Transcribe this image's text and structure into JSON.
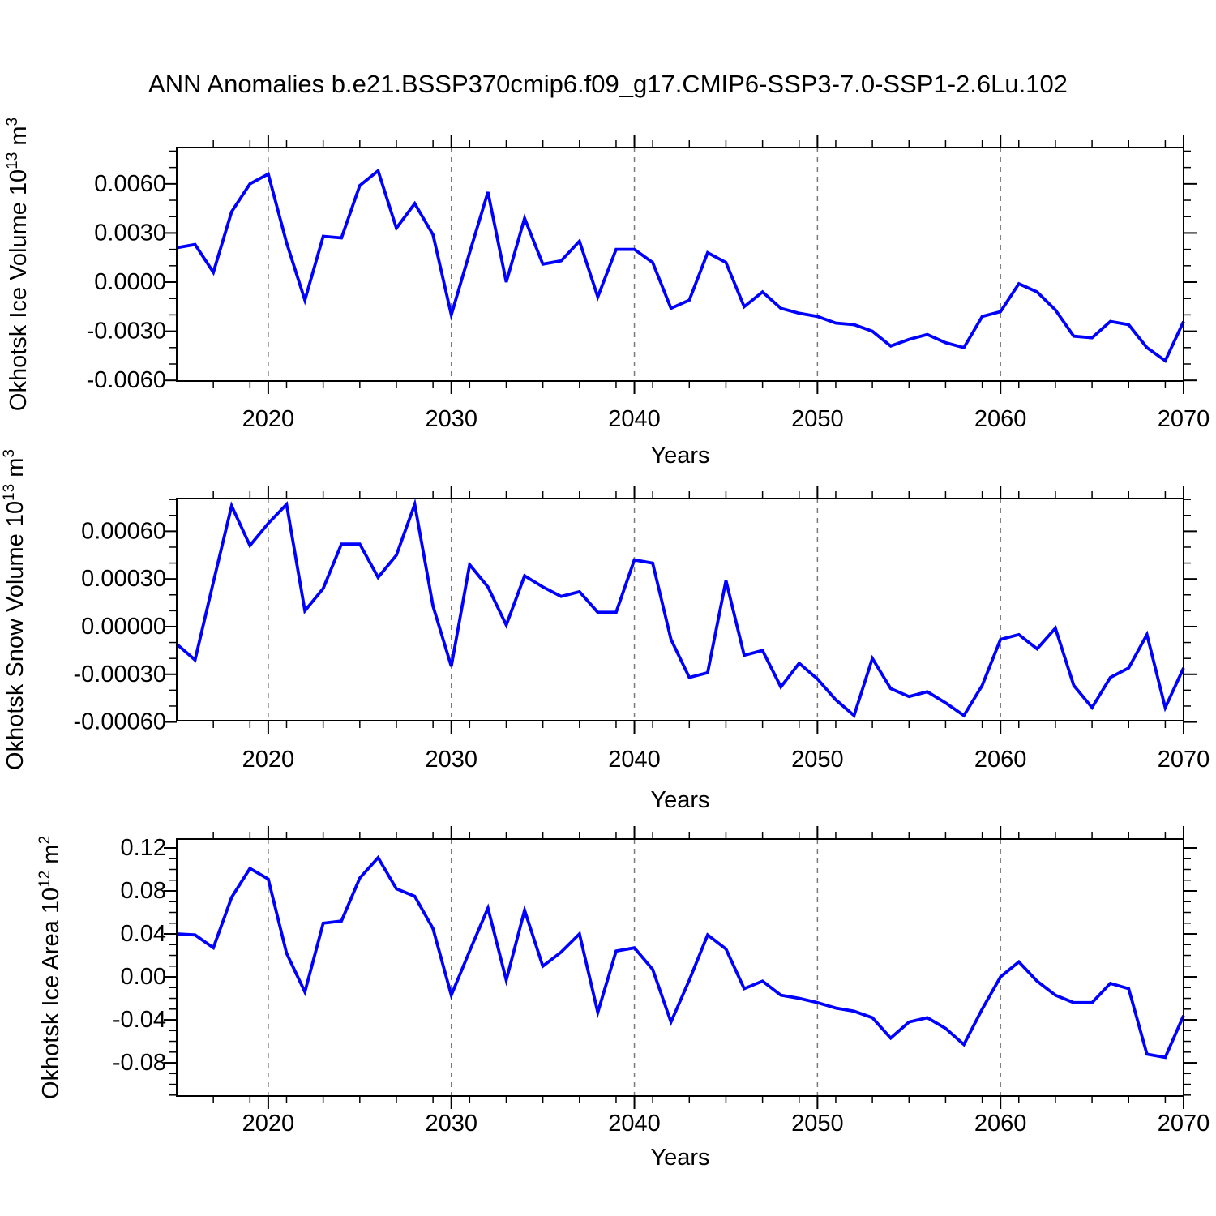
{
  "title": "ANN Anomalies b.e21.BSSP370cmip6.f09_g17.CMIP6-SSP3-7.0-SSP1-2.6Lu.102",
  "colors": {
    "line": "#0000ff",
    "grid": "#7a7a7a",
    "axis": "#000000",
    "background": "#ffffff"
  },
  "x_axis": {
    "label": "Years",
    "range": [
      2015,
      2070
    ],
    "major_ticks": [
      2020,
      2030,
      2040,
      2050,
      2060,
      2070
    ],
    "major_tick_labels": [
      "2020",
      "2030",
      "2040",
      "2050",
      "2060",
      "2070"
    ],
    "minor_tick_step": 2,
    "gridlines": [
      2020,
      2030,
      2040,
      2050,
      2060
    ]
  },
  "years": [
    2015,
    2016,
    2017,
    2018,
    2019,
    2020,
    2021,
    2022,
    2023,
    2024,
    2025,
    2026,
    2027,
    2028,
    2029,
    2030,
    2031,
    2032,
    2033,
    2034,
    2035,
    2036,
    2037,
    2038,
    2039,
    2040,
    2041,
    2042,
    2043,
    2044,
    2045,
    2046,
    2047,
    2048,
    2049,
    2050,
    2051,
    2052,
    2053,
    2054,
    2055,
    2056,
    2057,
    2058,
    2059,
    2060,
    2061,
    2062,
    2063,
    2064,
    2065,
    2066,
    2067,
    2068,
    2069,
    2070
  ],
  "chart_data": [
    {
      "type": "line",
      "id": "ice-volume",
      "ylabel": "Okhotsk Ice Volume 10^13 m^3",
      "ylabel_parts": [
        {
          "text": "Okhotsk Ice Volume 10",
          "sup": false
        },
        {
          "text": "13",
          "sup": true
        },
        {
          "text": " m",
          "sup": false
        },
        {
          "text": "3",
          "sup": true
        }
      ],
      "ylim": [
        -0.00604,
        0.00822
      ],
      "ytick_values": [
        0.006,
        0.003,
        0.0,
        -0.003,
        -0.006
      ],
      "ytick_labels": [
        "0.0060",
        "0.0030",
        "0.0000",
        "-0.0030",
        "-0.0060"
      ],
      "yminor_step": 0.001,
      "values": [
        0.0021,
        0.0023,
        0.0006,
        0.0043,
        0.006,
        0.0066,
        0.0024,
        -0.0011,
        0.0028,
        0.0027,
        0.0059,
        0.0068,
        0.0033,
        0.0048,
        0.0029,
        -0.002,
        0.0018,
        0.0055,
        0.0,
        0.0039,
        0.0011,
        0.0013,
        0.0025,
        -0.0009,
        0.002,
        0.002,
        0.0012,
        -0.0016,
        -0.0011,
        0.0018,
        0.0012,
        -0.0015,
        -0.0006,
        -0.0016,
        -0.0019,
        -0.0021,
        -0.0025,
        -0.0026,
        -0.003,
        -0.0039,
        -0.0035,
        -0.0032,
        -0.0037,
        -0.004,
        -0.0021,
        -0.0018,
        -0.0001,
        -0.0006,
        -0.0017,
        -0.0033,
        -0.0034,
        -0.0024,
        -0.0026,
        -0.004,
        -0.0048,
        -0.0024
      ]
    },
    {
      "type": "line",
      "id": "snow-volume",
      "ylabel": "Okhotsk Snow Volume 10^13 m^3",
      "ylabel_parts": [
        {
          "text": "Okhotsk Snow Volume 10",
          "sup": false
        },
        {
          "text": "13",
          "sup": true
        },
        {
          "text": " m",
          "sup": false
        },
        {
          "text": "3",
          "sup": true
        }
      ],
      "ylim": [
        -0.000592,
        0.000806
      ],
      "ytick_values": [
        0.0006,
        0.0003,
        0.0,
        -0.0003,
        -0.0006
      ],
      "ytick_labels": [
        "0.00060",
        "0.00030",
        "0.00000",
        "-0.00030",
        "-0.00060"
      ],
      "yminor_step": 0.0001,
      "values": [
        -0.00011,
        -0.00021,
        0.00028,
        0.00076,
        0.00051,
        0.00065,
        0.00077,
        0.0001,
        0.00024,
        0.00052,
        0.00052,
        0.00031,
        0.00045,
        0.00077,
        0.00013,
        -0.00025,
        0.00039,
        0.00025,
        1e-05,
        0.00032,
        0.00025,
        0.00019,
        0.00022,
        9e-05,
        9e-05,
        0.00042,
        0.0004,
        -8e-05,
        -0.00032,
        -0.00029,
        0.00029,
        -0.00018,
        -0.00015,
        -0.00038,
        -0.00023,
        -0.00033,
        -0.00046,
        -0.00056,
        -0.0002,
        -0.00039,
        -0.00044,
        -0.00041,
        -0.00048,
        -0.00056,
        -0.00037,
        -8e-05,
        -5e-05,
        -0.00014,
        -1e-05,
        -0.00037,
        -0.00051,
        -0.00032,
        -0.00026,
        -5e-05,
        -0.00051,
        -0.00026
      ]
    },
    {
      "type": "line",
      "id": "ice-area",
      "ylabel": "Okhotsk Ice Area 10^12 m^2",
      "ylabel_parts": [
        {
          "text": "Okhotsk Ice Area 10",
          "sup": false
        },
        {
          "text": "12",
          "sup": true
        },
        {
          "text": " m",
          "sup": false
        },
        {
          "text": "2",
          "sup": true
        }
      ],
      "ylim": [
        -0.1109,
        0.1283
      ],
      "ytick_values": [
        0.12,
        0.08,
        0.04,
        0.0,
        -0.04,
        -0.08
      ],
      "ytick_labels": [
        "0.12",
        "0.08",
        "0.04",
        "0.00",
        "-0.04",
        "-0.08"
      ],
      "yminor_step": 0.01,
      "values": [
        0.04,
        0.039,
        0.027,
        0.074,
        0.101,
        0.091,
        0.022,
        -0.014,
        0.05,
        0.052,
        0.092,
        0.111,
        0.082,
        0.075,
        0.045,
        -0.017,
        0.024,
        0.064,
        -0.003,
        0.062,
        0.01,
        0.023,
        0.04,
        -0.033,
        0.024,
        0.027,
        0.007,
        -0.042,
        -0.003,
        0.039,
        0.026,
        -0.011,
        -0.004,
        -0.017,
        -0.02,
        -0.024,
        -0.029,
        -0.032,
        -0.038,
        -0.057,
        -0.042,
        -0.038,
        -0.048,
        -0.063,
        -0.03,
        0.0,
        0.014,
        -0.004,
        -0.017,
        -0.024,
        -0.024,
        -0.006,
        -0.011,
        -0.072,
        -0.075,
        -0.036
      ]
    }
  ]
}
